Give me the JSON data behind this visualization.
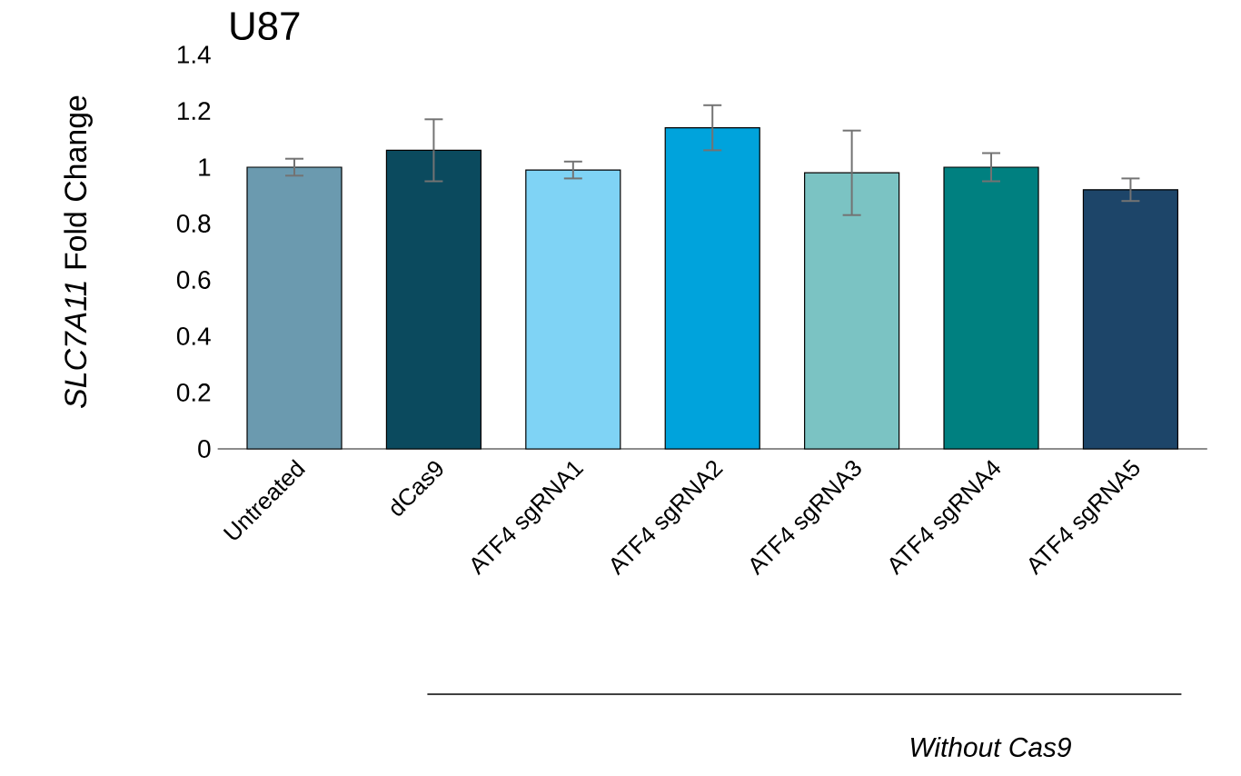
{
  "chart_data": {
    "type": "bar",
    "title": "U87",
    "ylabel": "*SLC7A11* Fold Change",
    "categories": [
      "Untreated",
      "dCas9",
      "ATF4 sgRNA1",
      "ATF4 sgRNA2",
      "ATF4 sgRNA3",
      "ATF4 sgRNA4",
      "ATF4 sgRNA5"
    ],
    "values": [
      1.0,
      1.06,
      0.99,
      1.14,
      0.98,
      1.0,
      0.92
    ],
    "errors": [
      0.03,
      0.11,
      0.03,
      0.08,
      0.15,
      0.05,
      0.04
    ],
    "colors": [
      "#6b9aaf",
      "#0b4a5e",
      "#7fd3f5",
      "#00a3dc",
      "#7bc3c3",
      "#008080",
      "#1d4569"
    ],
    "ylim": [
      0,
      1.4
    ],
    "yticks": [
      0,
      0.2,
      0.4,
      0.6,
      0.8,
      1,
      1.2,
      1.4
    ],
    "annotations": [
      "Without Cas9"
    ]
  }
}
